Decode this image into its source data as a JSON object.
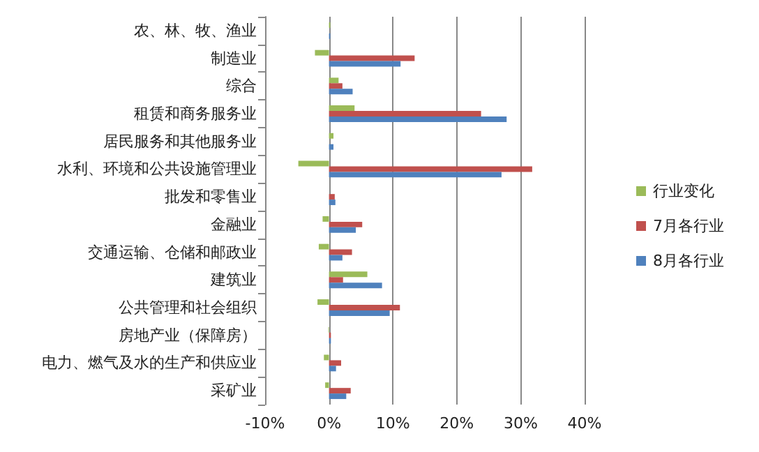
{
  "chart_data": {
    "type": "bar",
    "orientation": "horizontal",
    "categories": [
      "农、林、牧、渔业",
      "制造业",
      "综合",
      "租赁和商务服务业",
      "居民服务和其他服务业",
      "水利、环境和公共设施管理业",
      "批发和零售业",
      "金融业",
      "交通运输、仓储和邮政业",
      "建筑业",
      "公共管理和社会组织",
      "房地产业（保障房）",
      "电力、燃气及水的生产和供应业",
      "采矿业"
    ],
    "series": [
      {
        "name": "行业变化",
        "color": "#9bbb59",
        "values": [
          0.2,
          -2.2,
          1.5,
          4.0,
          0.7,
          -4.8,
          0,
          -1.0,
          -1.6,
          6.0,
          -1.8,
          -0.1,
          -0.8,
          -0.6
        ]
      },
      {
        "name": "7月各行业",
        "color": "#c0504d",
        "values": [
          0,
          13.4,
          2.1,
          23.8,
          0,
          31.8,
          0.9,
          5.2,
          3.6,
          2.2,
          11.1,
          0.3,
          1.9,
          3.4
        ]
      },
      {
        "name": "8月各行业",
        "color": "#4f81bd",
        "values": [
          0.2,
          11.2,
          3.7,
          27.8,
          0.7,
          27.0,
          1.0,
          4.2,
          2.1,
          8.3,
          9.5,
          0.3,
          1.1,
          2.7
        ]
      }
    ],
    "xlim": [
      -10,
      40
    ],
    "xticks": [
      {
        "value": -10,
        "label": "-10%"
      },
      {
        "value": 0,
        "label": "0%"
      },
      {
        "value": 10,
        "label": "10%"
      },
      {
        "value": 20,
        "label": "20%"
      },
      {
        "value": 30,
        "label": "30%"
      },
      {
        "value": 40,
        "label": "40%"
      }
    ],
    "grid": "x",
    "legend": "right"
  }
}
